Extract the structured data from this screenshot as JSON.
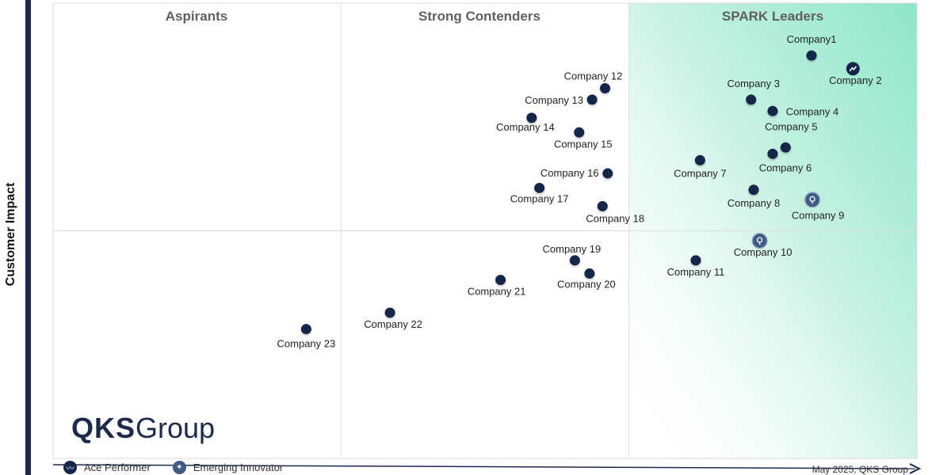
{
  "axis": {
    "ylabel": "Customer Impact"
  },
  "quadrants": {
    "left": "Aspirants",
    "middle": "Strong Contenders",
    "right": "SPARK Leaders"
  },
  "logo": {
    "bold": "QKS",
    "light": "Group"
  },
  "legend": {
    "ace_label": "Ace Performer",
    "innovator_label": "Emerging Innovator"
  },
  "footer": "May 2025, QKS Group",
  "colors": {
    "marker": "#14264a",
    "marker_light": "#3e5a85",
    "leader_gradient": "#8ee6c8",
    "frame_bar": "#1b2a4a"
  },
  "chart_data": {
    "type": "scatter",
    "xlim": [
      0,
      100
    ],
    "ylim": [
      0,
      100
    ],
    "grid": true,
    "legend": "bottom-left",
    "points": [
      {
        "label": "Company1",
        "x": 87.8,
        "y": 88.5,
        "type": "normal"
      },
      {
        "label": "Company 2",
        "x": 92.6,
        "y": 85.6,
        "type": "ace"
      },
      {
        "label": "Company 3",
        "x": 80.8,
        "y": 78.8,
        "type": "normal"
      },
      {
        "label": "Company 4",
        "x": 83.3,
        "y": 76.3,
        "type": "normal"
      },
      {
        "label": "Company 5",
        "x": 84.8,
        "y": 68.3,
        "type": "normal"
      },
      {
        "label": "Company 6",
        "x": 83.3,
        "y": 66.9,
        "type": "normal"
      },
      {
        "label": "Company 7",
        "x": 74.9,
        "y": 65.5,
        "type": "normal"
      },
      {
        "label": "Company 8",
        "x": 81.1,
        "y": 59.0,
        "type": "normal"
      },
      {
        "label": "Company 9",
        "x": 87.9,
        "y": 56.8,
        "type": "innovator"
      },
      {
        "label": "Company 10",
        "x": 81.8,
        "y": 47.8,
        "type": "innovator"
      },
      {
        "label": "Company 11",
        "x": 74.4,
        "y": 43.5,
        "type": "normal"
      },
      {
        "label": "Company 12",
        "x": 63.9,
        "y": 81.3,
        "type": "normal"
      },
      {
        "label": "Company 13",
        "x": 62.4,
        "y": 78.8,
        "type": "normal"
      },
      {
        "label": "Company 14",
        "x": 55.4,
        "y": 74.8,
        "type": "normal"
      },
      {
        "label": "Company 15",
        "x": 60.9,
        "y": 71.6,
        "type": "normal"
      },
      {
        "label": "Company 16",
        "x": 64.2,
        "y": 62.6,
        "type": "normal"
      },
      {
        "label": "Company 17",
        "x": 56.3,
        "y": 59.4,
        "type": "normal"
      },
      {
        "label": "Company 18",
        "x": 63.6,
        "y": 55.4,
        "type": "normal"
      },
      {
        "label": "Company 19",
        "x": 60.4,
        "y": 43.5,
        "type": "normal"
      },
      {
        "label": "Company 20",
        "x": 62.1,
        "y": 40.6,
        "type": "normal"
      },
      {
        "label": "Company 21",
        "x": 51.8,
        "y": 39.2,
        "type": "normal"
      },
      {
        "label": "Company 22",
        "x": 39.0,
        "y": 32.0,
        "type": "normal"
      },
      {
        "label": "Company 23",
        "x": 29.3,
        "y": 28.4,
        "type": "normal"
      }
    ]
  }
}
